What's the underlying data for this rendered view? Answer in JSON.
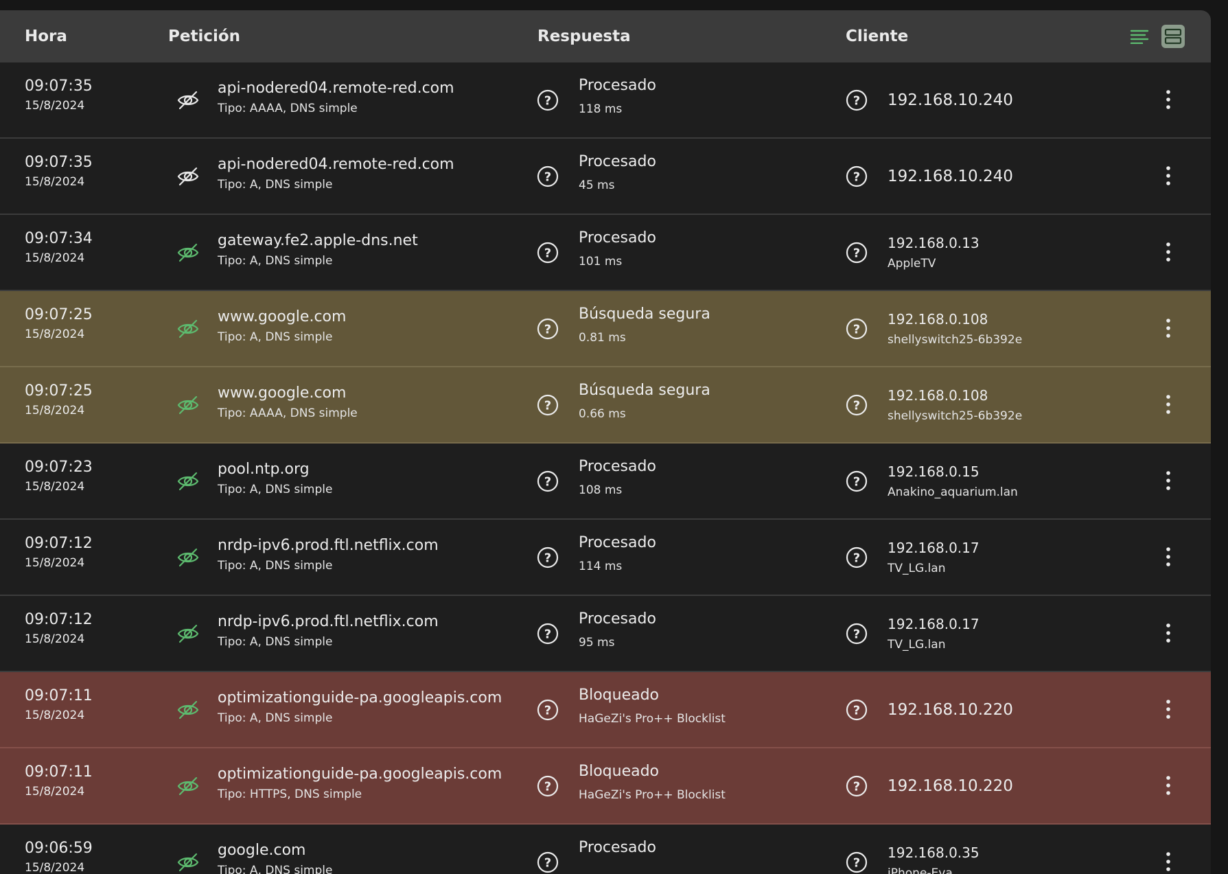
{
  "header": {
    "columns": {
      "time": "Hora",
      "request": "Petición",
      "response": "Respuesta",
      "client": "Cliente"
    },
    "view_buttons": [
      "compact-view-icon",
      "expanded-view-icon"
    ],
    "accent_color": "#5dbb6f"
  },
  "colors": {
    "processed_row": "#1e1e1e",
    "safe_search_row": "#625739",
    "blocked_row": "#6b3c37"
  },
  "rows": [
    {
      "time": "09:07:35",
      "date": "15/8/2024",
      "domain": "api-nodered04.remote-red.com",
      "type": "Tipo: AAAA, DNS simple",
      "status": "Procesado",
      "detail": "118 ms",
      "ip": "192.168.10.240",
      "client_name": "",
      "eye_icon": "eye-off-white",
      "kind": "processed"
    },
    {
      "time": "09:07:35",
      "date": "15/8/2024",
      "domain": "api-nodered04.remote-red.com",
      "type": "Tipo: A, DNS simple",
      "status": "Procesado",
      "detail": "45 ms",
      "ip": "192.168.10.240",
      "client_name": "",
      "eye_icon": "eye-off-white",
      "kind": "processed"
    },
    {
      "time": "09:07:34",
      "date": "15/8/2024",
      "domain": "gateway.fe2.apple-dns.net",
      "type": "Tipo: A, DNS simple",
      "status": "Procesado",
      "detail": "101 ms",
      "ip": "192.168.0.13",
      "client_name": "AppleTV",
      "eye_icon": "eye-off-green",
      "kind": "processed"
    },
    {
      "time": "09:07:25",
      "date": "15/8/2024",
      "domain": "www.google.com",
      "type": "Tipo: A, DNS simple",
      "status": "Búsqueda segura",
      "detail": "0.81 ms",
      "ip": "192.168.0.108",
      "client_name": "shellyswitch25-6b392e",
      "eye_icon": "eye-off-green",
      "kind": "warn"
    },
    {
      "time": "09:07:25",
      "date": "15/8/2024",
      "domain": "www.google.com",
      "type": "Tipo: AAAA, DNS simple",
      "status": "Búsqueda segura",
      "detail": "0.66 ms",
      "ip": "192.168.0.108",
      "client_name": "shellyswitch25-6b392e",
      "eye_icon": "eye-off-green",
      "kind": "warn"
    },
    {
      "time": "09:07:23",
      "date": "15/8/2024",
      "domain": "pool.ntp.org",
      "type": "Tipo: A, DNS simple",
      "status": "Procesado",
      "detail": "108 ms",
      "ip": "192.168.0.15",
      "client_name": "Anakino_aquarium.lan",
      "eye_icon": "eye-off-green",
      "kind": "processed"
    },
    {
      "time": "09:07:12",
      "date": "15/8/2024",
      "domain": "nrdp-ipv6.prod.ftl.netflix.com",
      "type": "Tipo: A, DNS simple",
      "status": "Procesado",
      "detail": "114 ms",
      "ip": "192.168.0.17",
      "client_name": "TV_LG.lan",
      "eye_icon": "eye-off-green",
      "kind": "processed"
    },
    {
      "time": "09:07:12",
      "date": "15/8/2024",
      "domain": "nrdp-ipv6.prod.ftl.netflix.com",
      "type": "Tipo: A, DNS simple",
      "status": "Procesado",
      "detail": "95 ms",
      "ip": "192.168.0.17",
      "client_name": "TV_LG.lan",
      "eye_icon": "eye-off-green",
      "kind": "processed"
    },
    {
      "time": "09:07:11",
      "date": "15/8/2024",
      "domain": "optimizationguide-pa.googleapis.com",
      "type": "Tipo: A, DNS simple",
      "status": "Bloqueado",
      "detail": "HaGeZi's Pro++ Blocklist",
      "ip": "192.168.10.220",
      "client_name": "",
      "eye_icon": "eye-off-green",
      "kind": "blocked"
    },
    {
      "time": "09:07:11",
      "date": "15/8/2024",
      "domain": "optimizationguide-pa.googleapis.com",
      "type": "Tipo: HTTPS, DNS simple",
      "status": "Bloqueado",
      "detail": "HaGeZi's Pro++ Blocklist",
      "ip": "192.168.10.220",
      "client_name": "",
      "eye_icon": "eye-off-green",
      "kind": "blocked"
    },
    {
      "time": "09:06:59",
      "date": "15/8/2024",
      "domain": "google.com",
      "type": "Tipo: A, DNS simple",
      "status": "Procesado",
      "detail": "",
      "ip": "192.168.0.35",
      "client_name": "iPhone-Eva",
      "eye_icon": "eye-off-green",
      "kind": "processed"
    }
  ]
}
